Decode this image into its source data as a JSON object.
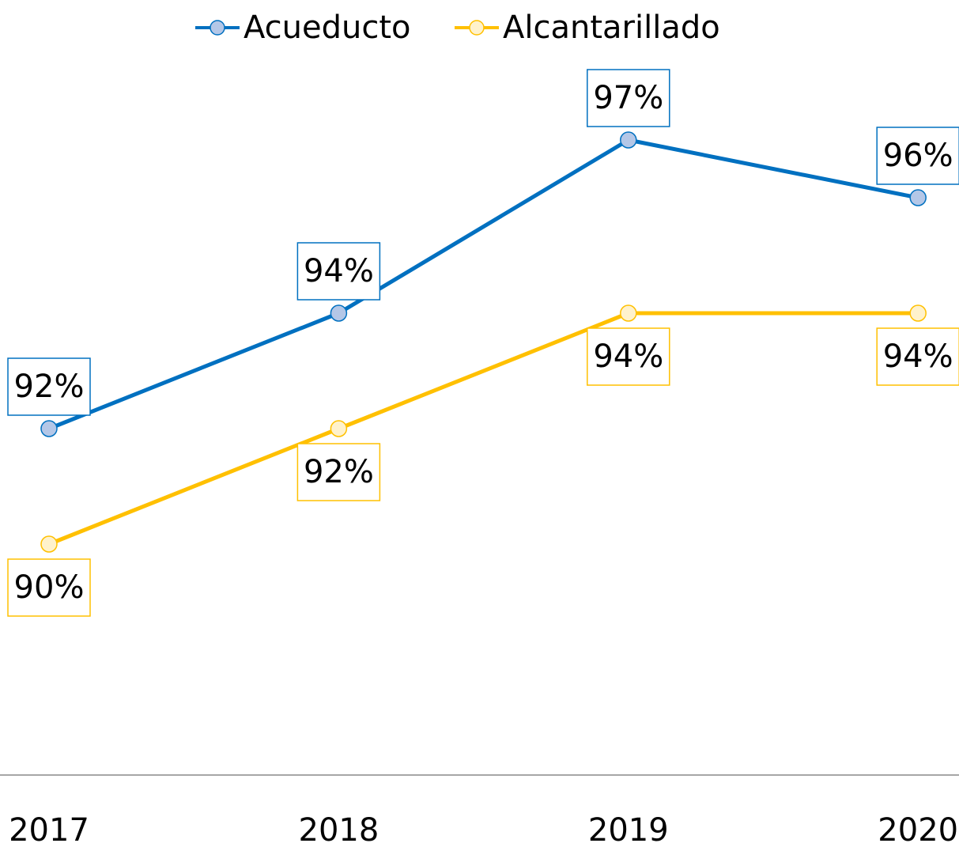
{
  "chart_data": {
    "type": "line",
    "categories": [
      "2017",
      "2018",
      "2019",
      "2020"
    ],
    "series": [
      {
        "name": "Acueducto",
        "color": "#0070c0",
        "marker_color": "#b4c7e7",
        "values": [
          92,
          94,
          97,
          96
        ],
        "value_labels": [
          "92%",
          "94%",
          "97%",
          "96%"
        ]
      },
      {
        "name": "Alcantarillado",
        "color": "#ffc000",
        "marker_color": "#fff2cc",
        "values": [
          90,
          92,
          94,
          94
        ],
        "value_labels": [
          "90%",
          "92%",
          "94%",
          "94%"
        ]
      }
    ],
    "ylim": [
      86,
      98
    ]
  }
}
